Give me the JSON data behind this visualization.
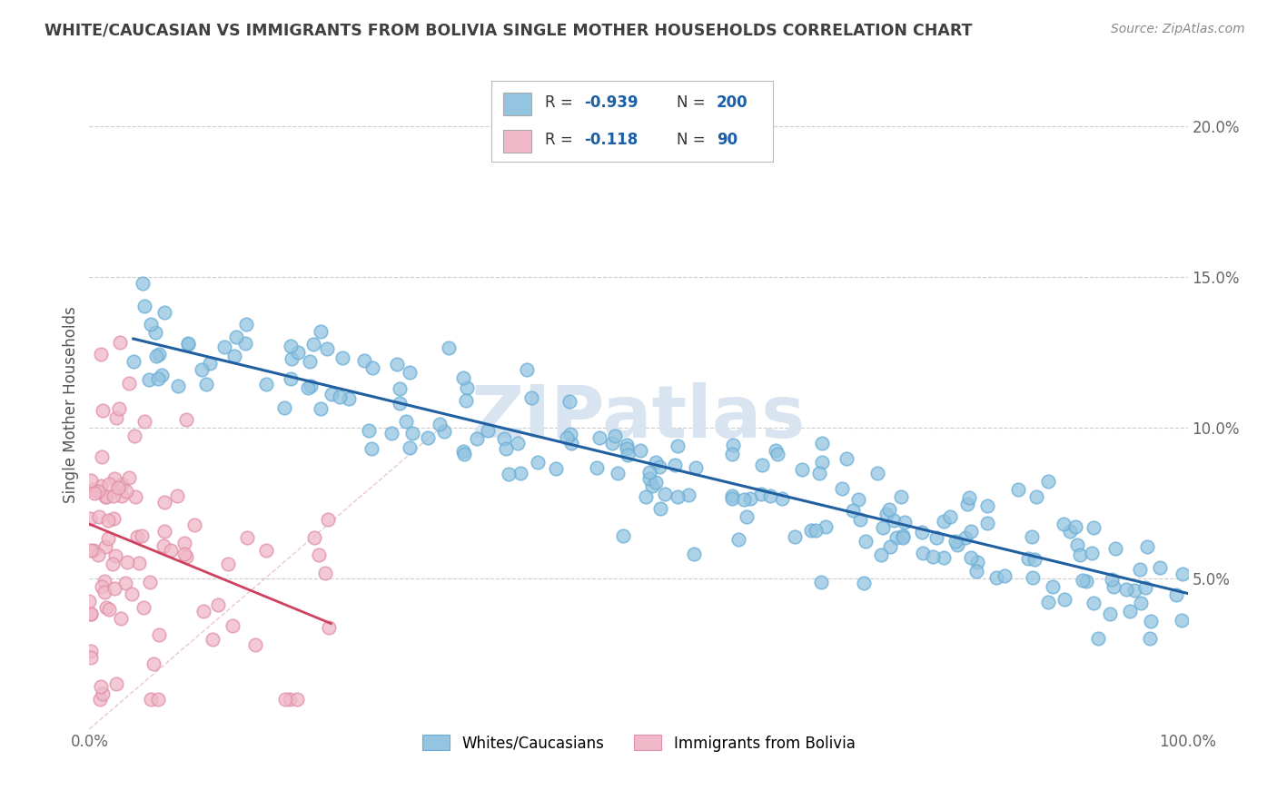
{
  "title": "WHITE/CAUCASIAN VS IMMIGRANTS FROM BOLIVIA SINGLE MOTHER HOUSEHOLDS CORRELATION CHART",
  "source": "Source: ZipAtlas.com",
  "ylabel": "Single Mother Households",
  "yticks": [
    "5.0%",
    "10.0%",
    "15.0%",
    "20.0%"
  ],
  "ytick_vals": [
    0.05,
    0.1,
    0.15,
    0.2
  ],
  "xlim": [
    0.0,
    1.0
  ],
  "ylim": [
    0.0,
    0.215
  ],
  "legend1_label": "Whites/Caucasians",
  "legend2_label": "Immigrants from Bolivia",
  "R1": "-0.939",
  "N1": "200",
  "R2": "-0.118",
  "N2": "90",
  "blue_color": "#93c4e0",
  "blue_edge_color": "#6aaed6",
  "blue_line_color": "#2060a0",
  "pink_color": "#f0b8c8",
  "pink_edge_color": "#e090a8",
  "pink_line_color": "#d04060",
  "dashed_line_color": "#e0b0c0",
  "grid_color": "#cccccc",
  "watermark_color": "#d8e4f0",
  "title_color": "#404040",
  "stat_text_color": "#333333",
  "stat_val_color": "#1a5fa8",
  "background_color": "#ffffff",
  "blue_intercept": 0.133,
  "blue_slope": -0.088,
  "pink_intercept": 0.068,
  "pink_slope": -0.15
}
